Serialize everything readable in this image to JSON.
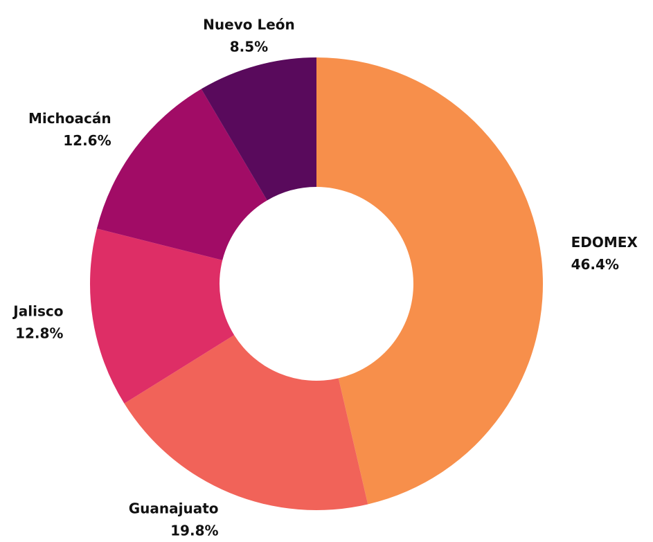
{
  "chart_data": {
    "type": "donut",
    "categories": [
      "EDOMEX",
      "Guanajuato",
      "Jalisco",
      "Michoacán",
      "Nuevo León"
    ],
    "values": [
      46.4,
      19.8,
      12.8,
      12.6,
      8.5
    ],
    "value_labels": [
      "46.4%",
      "19.8%",
      "12.8%",
      "12.6%",
      "8.5%"
    ],
    "colors": [
      "#f78f4b",
      "#f16359",
      "#de2e66",
      "#a10c66",
      "#590a5c"
    ]
  }
}
